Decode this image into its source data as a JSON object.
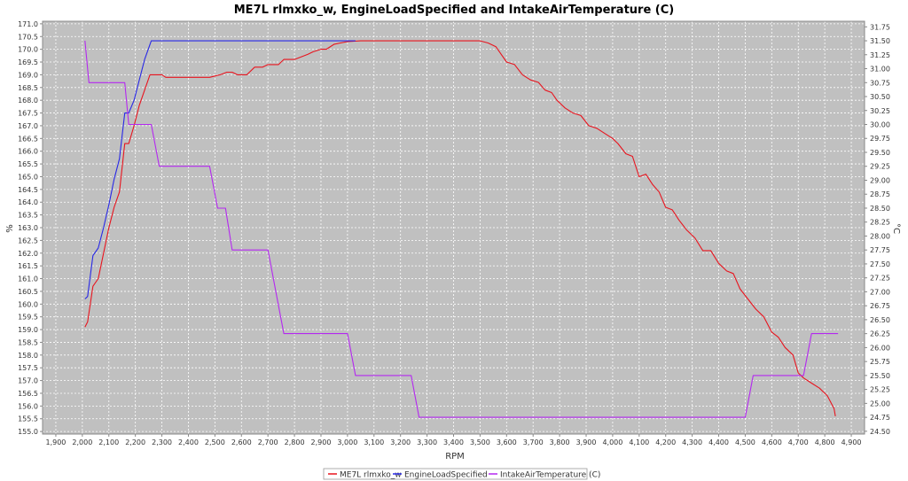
{
  "chart_data": {
    "type": "line",
    "title": "ME7L rlmxko_w, EngineLoadSpecified and IntakeAirTemperature (C)",
    "xlabel": "RPM",
    "ylabel": "%",
    "y2label": "°C",
    "xlim": [
      1850,
      4950
    ],
    "ylim": [
      154.9,
      171.1
    ],
    "y2lim": [
      24.45,
      31.85
    ],
    "x_ticks": [
      1900,
      2000,
      2100,
      2200,
      2300,
      2400,
      2500,
      2600,
      2700,
      2800,
      2900,
      3000,
      3100,
      3200,
      3300,
      3400,
      3500,
      3600,
      3700,
      3800,
      3900,
      4000,
      4100,
      4200,
      4300,
      4400,
      4500,
      4600,
      4700,
      4800,
      4900
    ],
    "x_tick_labels": [
      "1,900",
      "2,000",
      "2,100",
      "2,200",
      "2,300",
      "2,400",
      "2,500",
      "2,600",
      "2,700",
      "2,800",
      "2,900",
      "3,000",
      "3,100",
      "3,200",
      "3,300",
      "3,400",
      "3,500",
      "3,600",
      "3,700",
      "3,800",
      "3,900",
      "4,000",
      "4,100",
      "4,200",
      "4,300",
      "4,400",
      "4,500",
      "4,600",
      "4,700",
      "4,800",
      "4,900"
    ],
    "y_ticks": [
      155.0,
      155.5,
      156.0,
      156.5,
      157.0,
      157.5,
      158.0,
      158.5,
      159.0,
      159.5,
      160.0,
      160.5,
      161.0,
      161.5,
      162.0,
      162.5,
      163.0,
      163.5,
      164.0,
      164.5,
      165.0,
      165.5,
      166.0,
      166.5,
      167.0,
      167.5,
      168.0,
      168.5,
      169.0,
      169.5,
      170.0,
      170.5,
      171.0
    ],
    "y_tick_labels": [
      "155.0",
      "155.5",
      "156.0",
      "156.5",
      "157.0",
      "157.5",
      "158.0",
      "158.5",
      "159.0",
      "159.5",
      "160.0",
      "160.5",
      "161.0",
      "161.5",
      "162.0",
      "162.5",
      "163.0",
      "163.5",
      "164.0",
      "164.5",
      "165.0",
      "165.5",
      "166.0",
      "166.5",
      "167.0",
      "167.5",
      "168.0",
      "168.5",
      "169.0",
      "169.5",
      "170.0",
      "170.5",
      "171.0"
    ],
    "y2_ticks": [
      24.5,
      24.75,
      25.0,
      25.25,
      25.5,
      25.75,
      26.0,
      26.25,
      26.5,
      26.75,
      27.0,
      27.25,
      27.5,
      27.75,
      28.0,
      28.25,
      28.5,
      28.75,
      29.0,
      29.25,
      29.5,
      29.75,
      30.0,
      30.25,
      30.5,
      30.75,
      31.0,
      31.25,
      31.5,
      31.75
    ],
    "y2_tick_labels": [
      "24.50",
      "24.75",
      "25.00",
      "25.25",
      "25.50",
      "25.75",
      "26.00",
      "26.25",
      "26.50",
      "26.75",
      "27.00",
      "27.25",
      "27.50",
      "27.75",
      "28.00",
      "28.25",
      "28.50",
      "28.75",
      "29.00",
      "29.25",
      "29.50",
      "29.75",
      "30.00",
      "30.25",
      "30.50",
      "30.75",
      "31.00",
      "31.25",
      "31.50",
      "31.75"
    ],
    "grid": true,
    "legend_position": "bottom-center",
    "plot_background": "#c0c0c0",
    "grid_color": "#ffffff",
    "series": [
      {
        "name": "ME7L rlmxko_w",
        "color": "#e8141e",
        "axis": "left",
        "points": [
          [
            2010,
            159.1
          ],
          [
            2020,
            159.3
          ],
          [
            2040,
            160.7
          ],
          [
            2060,
            161.0
          ],
          [
            2080,
            162.0
          ],
          [
            2100,
            163.0
          ],
          [
            2120,
            163.8
          ],
          [
            2140,
            164.4
          ],
          [
            2160,
            166.3
          ],
          [
            2175,
            166.3
          ],
          [
            2195,
            167.0
          ],
          [
            2215,
            167.8
          ],
          [
            2235,
            168.4
          ],
          [
            2255,
            169.0
          ],
          [
            2300,
            169.0
          ],
          [
            2315,
            168.9
          ],
          [
            2350,
            168.9
          ],
          [
            2400,
            168.9
          ],
          [
            2450,
            168.9
          ],
          [
            2480,
            168.9
          ],
          [
            2500,
            168.95
          ],
          [
            2520,
            169.0
          ],
          [
            2545,
            169.1
          ],
          [
            2565,
            169.1
          ],
          [
            2585,
            169.0
          ],
          [
            2620,
            169.0
          ],
          [
            2650,
            169.3
          ],
          [
            2680,
            169.3
          ],
          [
            2700,
            169.4
          ],
          [
            2740,
            169.4
          ],
          [
            2760,
            169.6
          ],
          [
            2800,
            169.6
          ],
          [
            2850,
            169.8
          ],
          [
            2870,
            169.9
          ],
          [
            2900,
            170.0
          ],
          [
            2920,
            170.0
          ],
          [
            2950,
            170.2
          ],
          [
            3000,
            170.3
          ],
          [
            3050,
            170.33
          ],
          [
            3100,
            170.33
          ],
          [
            3200,
            170.33
          ],
          [
            3300,
            170.33
          ],
          [
            3400,
            170.33
          ],
          [
            3500,
            170.33
          ],
          [
            3530,
            170.25
          ],
          [
            3560,
            170.1
          ],
          [
            3580,
            169.8
          ],
          [
            3600,
            169.5
          ],
          [
            3630,
            169.4
          ],
          [
            3660,
            169.0
          ],
          [
            3690,
            168.8
          ],
          [
            3720,
            168.7
          ],
          [
            3745,
            168.4
          ],
          [
            3770,
            168.3
          ],
          [
            3790,
            168.0
          ],
          [
            3820,
            167.7
          ],
          [
            3850,
            167.5
          ],
          [
            3880,
            167.4
          ],
          [
            3910,
            167.0
          ],
          [
            3940,
            166.9
          ],
          [
            3970,
            166.7
          ],
          [
            4000,
            166.5
          ],
          [
            4020,
            166.3
          ],
          [
            4050,
            165.9
          ],
          [
            4075,
            165.8
          ],
          [
            4100,
            165.0
          ],
          [
            4125,
            165.1
          ],
          [
            4150,
            164.7
          ],
          [
            4175,
            164.4
          ],
          [
            4200,
            163.8
          ],
          [
            4225,
            163.7
          ],
          [
            4250,
            163.3
          ],
          [
            4280,
            162.9
          ],
          [
            4310,
            162.6
          ],
          [
            4340,
            162.1
          ],
          [
            4370,
            162.1
          ],
          [
            4400,
            161.6
          ],
          [
            4430,
            161.3
          ],
          [
            4455,
            161.2
          ],
          [
            4480,
            160.6
          ],
          [
            4510,
            160.2
          ],
          [
            4540,
            159.8
          ],
          [
            4570,
            159.5
          ],
          [
            4600,
            158.9
          ],
          [
            4625,
            158.7
          ],
          [
            4650,
            158.3
          ],
          [
            4680,
            158.0
          ],
          [
            4700,
            157.3
          ],
          [
            4720,
            157.1
          ],
          [
            4750,
            156.9
          ],
          [
            4780,
            156.7
          ],
          [
            4810,
            156.4
          ],
          [
            4835,
            155.9
          ],
          [
            4840,
            155.6
          ]
        ]
      },
      {
        "name": "EngineLoadSpecified",
        "color": "#2828e6",
        "axis": "left",
        "points": [
          [
            2010,
            160.2
          ],
          [
            2020,
            160.3
          ],
          [
            2040,
            161.9
          ],
          [
            2060,
            162.2
          ],
          [
            2080,
            163.0
          ],
          [
            2100,
            163.9
          ],
          [
            2120,
            164.9
          ],
          [
            2140,
            165.7
          ],
          [
            2160,
            167.5
          ],
          [
            2175,
            167.5
          ],
          [
            2195,
            168.0
          ],
          [
            2215,
            168.8
          ],
          [
            2235,
            169.6
          ],
          [
            2260,
            170.33
          ],
          [
            2300,
            170.33
          ],
          [
            2400,
            170.33
          ],
          [
            2500,
            170.33
          ],
          [
            2600,
            170.33
          ],
          [
            2700,
            170.33
          ],
          [
            2800,
            170.33
          ],
          [
            2900,
            170.33
          ],
          [
            3000,
            170.33
          ],
          [
            3030,
            170.33
          ]
        ]
      },
      {
        "name": "IntakeAirTemperature (C)",
        "color": "#b428f0",
        "axis": "right",
        "points": [
          [
            2010,
            31.5
          ],
          [
            2025,
            30.75
          ],
          [
            2080,
            30.75
          ],
          [
            2130,
            30.75
          ],
          [
            2160,
            30.75
          ],
          [
            2175,
            30.0
          ],
          [
            2200,
            30.0
          ],
          [
            2260,
            30.0
          ],
          [
            2290,
            29.25
          ],
          [
            2350,
            29.25
          ],
          [
            2400,
            29.25
          ],
          [
            2480,
            29.25
          ],
          [
            2510,
            28.5
          ],
          [
            2540,
            28.5
          ],
          [
            2565,
            27.75
          ],
          [
            2620,
            27.75
          ],
          [
            2700,
            27.75
          ],
          [
            2730,
            27.0
          ],
          [
            2760,
            26.25
          ],
          [
            2800,
            26.25
          ],
          [
            2900,
            26.25
          ],
          [
            3000,
            26.25
          ],
          [
            3030,
            25.5
          ],
          [
            3100,
            25.5
          ],
          [
            3200,
            25.5
          ],
          [
            3240,
            25.5
          ],
          [
            3270,
            24.75
          ],
          [
            3300,
            24.75
          ],
          [
            3500,
            24.75
          ],
          [
            3700,
            24.75
          ],
          [
            3900,
            24.75
          ],
          [
            4100,
            24.75
          ],
          [
            4300,
            24.75
          ],
          [
            4500,
            24.75
          ],
          [
            4530,
            25.5
          ],
          [
            4600,
            25.5
          ],
          [
            4700,
            25.5
          ],
          [
            4720,
            25.5
          ],
          [
            4750,
            26.25
          ],
          [
            4800,
            26.25
          ],
          [
            4850,
            26.25
          ]
        ]
      }
    ]
  }
}
